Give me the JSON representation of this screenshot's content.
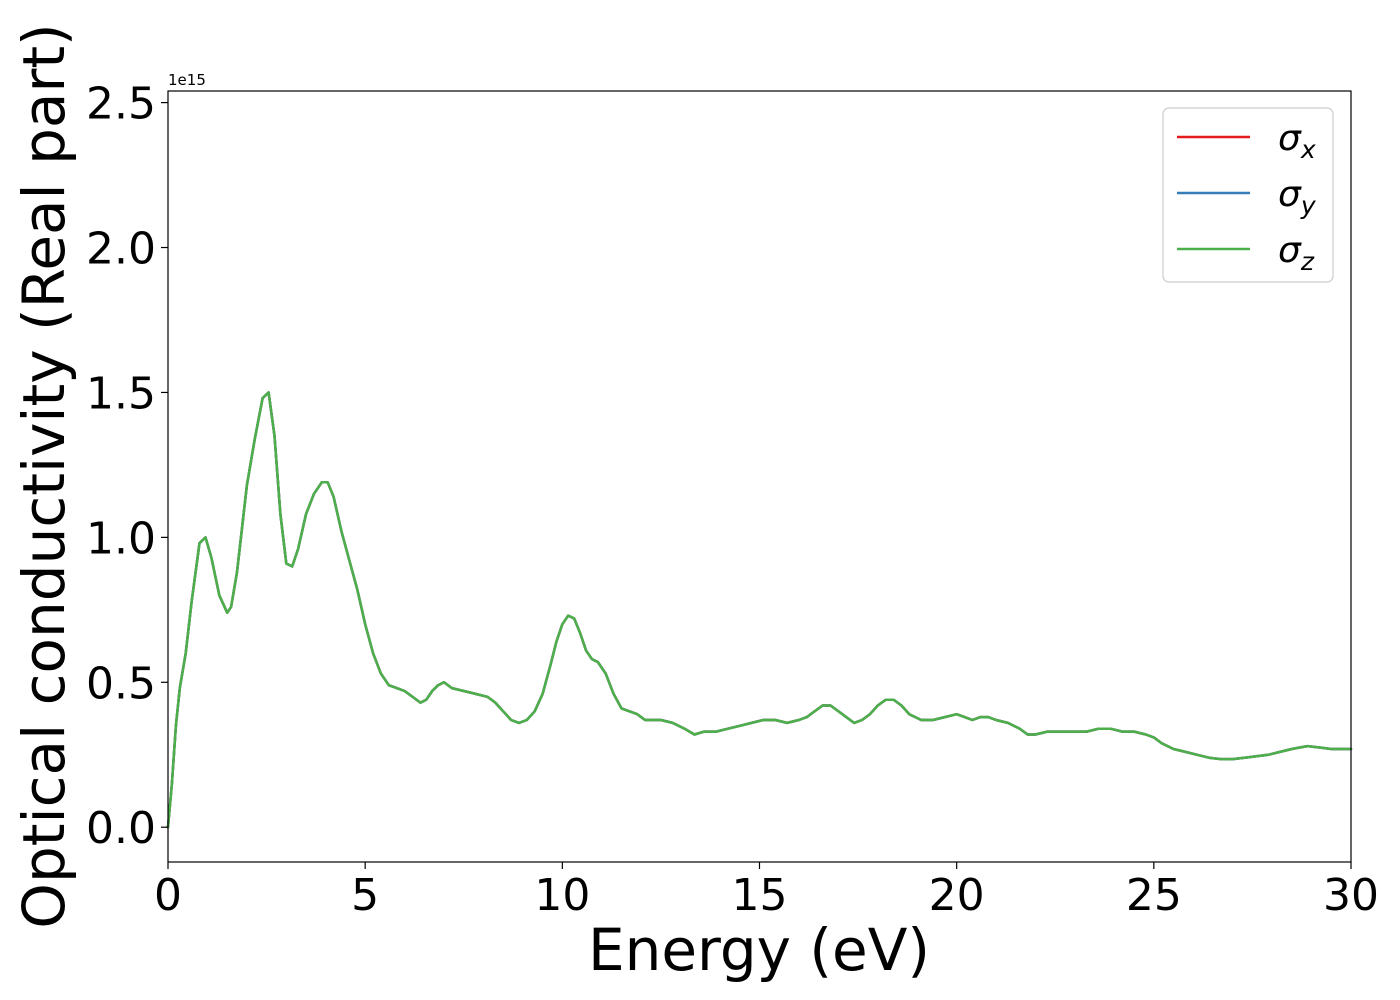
{
  "chart_data": {
    "type": "line",
    "xlabel": "Energy (eV)",
    "ylabel": "Optical conductivity (Real part)",
    "y_offset_label": "1e15",
    "xlim": [
      0,
      30
    ],
    "ylim": [
      -0.12,
      2.54
    ],
    "x_ticks": [
      0,
      5,
      10,
      15,
      20,
      25,
      30
    ],
    "x_tick_labels": [
      "0",
      "5",
      "10",
      "15",
      "20",
      "25",
      "30"
    ],
    "y_ticks": [
      0.0,
      0.5,
      1.0,
      1.5,
      2.0,
      2.5
    ],
    "y_tick_labels": [
      "0.0",
      "0.5",
      "1.0",
      "1.5",
      "2.0",
      "2.5"
    ],
    "grid": false,
    "legend_position": "top-right",
    "x": [
      0,
      0.1,
      0.2,
      0.3,
      0.45,
      0.6,
      0.8,
      0.95,
      1.1,
      1.3,
      1.5,
      1.6,
      1.75,
      2.0,
      2.2,
      2.4,
      2.55,
      2.7,
      2.85,
      3.0,
      3.15,
      3.3,
      3.5,
      3.7,
      3.9,
      4.05,
      4.2,
      4.4,
      4.6,
      4.8,
      5.0,
      5.2,
      5.4,
      5.6,
      5.8,
      6.0,
      6.2,
      6.4,
      6.55,
      6.7,
      6.85,
      7.0,
      7.2,
      7.5,
      7.8,
      8.1,
      8.3,
      8.5,
      8.7,
      8.9,
      9.1,
      9.3,
      9.5,
      9.7,
      9.85,
      10.0,
      10.15,
      10.3,
      10.45,
      10.6,
      10.75,
      10.9,
      11.1,
      11.3,
      11.5,
      11.7,
      11.9,
      12.1,
      12.3,
      12.5,
      12.8,
      13.1,
      13.35,
      13.6,
      13.9,
      14.2,
      14.5,
      14.8,
      15.1,
      15.4,
      15.7,
      16.0,
      16.2,
      16.4,
      16.6,
      16.8,
      17.0,
      17.2,
      17.4,
      17.6,
      17.8,
      18.0,
      18.2,
      18.4,
      18.6,
      18.8,
      19.1,
      19.4,
      19.7,
      20.0,
      20.2,
      20.4,
      20.6,
      20.8,
      21.0,
      21.3,
      21.6,
      21.8,
      22.0,
      22.3,
      22.6,
      22.9,
      23.1,
      23.3,
      23.6,
      23.9,
      24.2,
      24.5,
      24.8,
      25.0,
      25.2,
      25.5,
      25.8,
      26.1,
      26.4,
      26.7,
      27.0,
      27.3,
      27.6,
      27.9,
      28.2,
      28.5,
      28.7,
      28.9,
      29.2,
      29.5,
      29.8,
      30.0
    ],
    "series": [
      {
        "name": "σx",
        "color": "#e41a1c",
        "y": [
          0.0,
          0.15,
          0.35,
          0.48,
          0.6,
          0.78,
          0.98,
          1.0,
          0.93,
          0.8,
          0.74,
          0.76,
          0.88,
          1.18,
          1.34,
          1.48,
          1.5,
          1.35,
          1.08,
          0.91,
          0.9,
          0.96,
          1.08,
          1.15,
          1.19,
          1.19,
          1.14,
          1.02,
          0.92,
          0.82,
          0.7,
          0.6,
          0.53,
          0.49,
          0.48,
          0.47,
          0.45,
          0.43,
          0.44,
          0.47,
          0.49,
          0.5,
          0.48,
          0.47,
          0.46,
          0.45,
          0.43,
          0.4,
          0.37,
          0.36,
          0.37,
          0.4,
          0.46,
          0.56,
          0.64,
          0.7,
          0.73,
          0.72,
          0.67,
          0.61,
          0.58,
          0.57,
          0.53,
          0.46,
          0.41,
          0.4,
          0.39,
          0.37,
          0.37,
          0.37,
          0.36,
          0.34,
          0.32,
          0.33,
          0.33,
          0.34,
          0.35,
          0.36,
          0.37,
          0.37,
          0.36,
          0.37,
          0.38,
          0.4,
          0.42,
          0.42,
          0.4,
          0.38,
          0.36,
          0.37,
          0.39,
          0.42,
          0.44,
          0.44,
          0.42,
          0.39,
          0.37,
          0.37,
          0.38,
          0.39,
          0.38,
          0.37,
          0.38,
          0.38,
          0.37,
          0.36,
          0.34,
          0.32,
          0.32,
          0.33,
          0.33,
          0.33,
          0.33,
          0.33,
          0.34,
          0.34,
          0.33,
          0.33,
          0.32,
          0.31,
          0.29,
          0.27,
          0.26,
          0.25,
          0.24,
          0.235,
          0.235,
          0.24,
          0.245,
          0.25,
          0.26,
          0.27,
          0.275,
          0.28,
          0.275,
          0.27,
          0.27,
          0.27
        ]
      },
      {
        "name": "σy",
        "color": "#377eb8",
        "y": [
          0.0,
          0.15,
          0.35,
          0.48,
          0.6,
          0.78,
          0.98,
          1.0,
          0.93,
          0.8,
          0.74,
          0.76,
          0.88,
          1.18,
          1.34,
          1.48,
          1.5,
          1.35,
          1.08,
          0.91,
          0.9,
          0.96,
          1.08,
          1.15,
          1.19,
          1.19,
          1.14,
          1.02,
          0.92,
          0.82,
          0.7,
          0.6,
          0.53,
          0.49,
          0.48,
          0.47,
          0.45,
          0.43,
          0.44,
          0.47,
          0.49,
          0.5,
          0.48,
          0.47,
          0.46,
          0.45,
          0.43,
          0.4,
          0.37,
          0.36,
          0.37,
          0.4,
          0.46,
          0.56,
          0.64,
          0.7,
          0.73,
          0.72,
          0.67,
          0.61,
          0.58,
          0.57,
          0.53,
          0.46,
          0.41,
          0.4,
          0.39,
          0.37,
          0.37,
          0.37,
          0.36,
          0.34,
          0.32,
          0.33,
          0.33,
          0.34,
          0.35,
          0.36,
          0.37,
          0.37,
          0.36,
          0.37,
          0.38,
          0.4,
          0.42,
          0.42,
          0.4,
          0.38,
          0.36,
          0.37,
          0.39,
          0.42,
          0.44,
          0.44,
          0.42,
          0.39,
          0.37,
          0.37,
          0.38,
          0.39,
          0.38,
          0.37,
          0.38,
          0.38,
          0.37,
          0.36,
          0.34,
          0.32,
          0.32,
          0.33,
          0.33,
          0.33,
          0.33,
          0.33,
          0.34,
          0.34,
          0.33,
          0.33,
          0.32,
          0.31,
          0.29,
          0.27,
          0.26,
          0.25,
          0.24,
          0.235,
          0.235,
          0.24,
          0.245,
          0.25,
          0.26,
          0.27,
          0.275,
          0.28,
          0.275,
          0.27,
          0.27,
          0.27
        ]
      },
      {
        "name": "σz",
        "color": "#4daf4a",
        "y": [
          0.0,
          0.15,
          0.35,
          0.48,
          0.6,
          0.78,
          0.98,
          1.0,
          0.93,
          0.8,
          0.74,
          0.76,
          0.88,
          1.18,
          1.34,
          1.48,
          1.5,
          1.35,
          1.08,
          0.91,
          0.9,
          0.96,
          1.08,
          1.15,
          1.19,
          1.19,
          1.14,
          1.02,
          0.92,
          0.82,
          0.7,
          0.6,
          0.53,
          0.49,
          0.48,
          0.47,
          0.45,
          0.43,
          0.44,
          0.47,
          0.49,
          0.5,
          0.48,
          0.47,
          0.46,
          0.45,
          0.43,
          0.4,
          0.37,
          0.36,
          0.37,
          0.4,
          0.46,
          0.56,
          0.64,
          0.7,
          0.73,
          0.72,
          0.67,
          0.61,
          0.58,
          0.57,
          0.53,
          0.46,
          0.41,
          0.4,
          0.39,
          0.37,
          0.37,
          0.37,
          0.36,
          0.34,
          0.32,
          0.33,
          0.33,
          0.34,
          0.35,
          0.36,
          0.37,
          0.37,
          0.36,
          0.37,
          0.38,
          0.4,
          0.42,
          0.42,
          0.4,
          0.38,
          0.36,
          0.37,
          0.39,
          0.42,
          0.44,
          0.44,
          0.42,
          0.39,
          0.37,
          0.37,
          0.38,
          0.39,
          0.38,
          0.37,
          0.38,
          0.38,
          0.37,
          0.36,
          0.34,
          0.32,
          0.32,
          0.33,
          0.33,
          0.33,
          0.33,
          0.33,
          0.34,
          0.34,
          0.33,
          0.33,
          0.32,
          0.31,
          0.29,
          0.27,
          0.26,
          0.25,
          0.24,
          0.235,
          0.235,
          0.24,
          0.245,
          0.25,
          0.26,
          0.27,
          0.275,
          0.28,
          0.275,
          0.27,
          0.27,
          0.27
        ]
      }
    ],
    "legend": [
      {
        "symbol": "σ",
        "sub": "x",
        "color": "#e41a1c"
      },
      {
        "symbol": "σ",
        "sub": "y",
        "color": "#377eb8"
      },
      {
        "symbol": "σ",
        "sub": "z",
        "color": "#4daf4a"
      }
    ]
  }
}
